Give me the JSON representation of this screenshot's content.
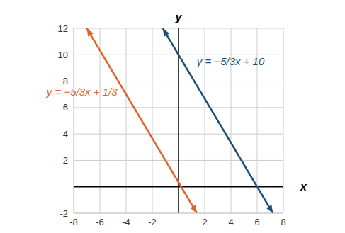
{
  "chart_data": {
    "type": "line",
    "x_label": "x",
    "y_label": "y",
    "series": [
      {
        "name": "y = −5/3x + 1/3",
        "color": "#e0622a",
        "x": [
          -7,
          1.4
        ],
        "values": [
          12,
          -2
        ]
      },
      {
        "name": "y = −5/3x + 10",
        "color": "#1f4e79",
        "x": [
          -1.2,
          7.2
        ],
        "values": [
          12,
          -2
        ]
      }
    ],
    "xlim": [
      -8,
      8
    ],
    "xticks": [
      -8,
      -6,
      -4,
      -2,
      2,
      4,
      6,
      8
    ],
    "ylim": [
      -2,
      12
    ],
    "yticks": [
      -2,
      2,
      4,
      6,
      8,
      10,
      12
    ],
    "grid": true
  }
}
